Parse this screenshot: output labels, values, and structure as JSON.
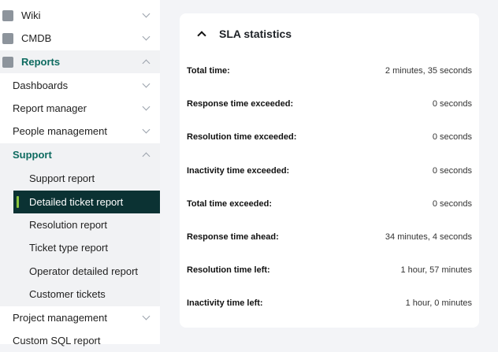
{
  "sidebar": {
    "wiki": "Wiki",
    "cmdb": "CMDB",
    "reports": "Reports",
    "dashboards": "Dashboards",
    "report_manager": "Report manager",
    "people_management": "People management",
    "support": "Support",
    "support_items": [
      "Support report",
      "Detailed ticket report",
      "Resolution report",
      "Ticket type report",
      "Operator detailed report",
      "Customer tickets"
    ],
    "project_management": "Project management",
    "custom_sql": "Custom SQL report",
    "accent": "#0e6b60",
    "selected_bg": "#0b3233"
  },
  "sla": {
    "title": "SLA statistics",
    "rows": [
      {
        "label": "Total time:",
        "value": "2 minutes, 35 seconds"
      },
      {
        "label": "Response time exceeded:",
        "value": "0 seconds"
      },
      {
        "label": "Resolution time exceeded:",
        "value": "0 seconds"
      },
      {
        "label": "Inactivity time exceeded:",
        "value": "0 seconds"
      },
      {
        "label": "Total time exceeded:",
        "value": "0 seconds"
      },
      {
        "label": "Response time ahead:",
        "value": "34 minutes, 4 seconds"
      },
      {
        "label": "Resolution time left:",
        "value": "1 hour, 57 minutes"
      },
      {
        "label": "Inactivity time left:",
        "value": "1 hour, 0 minutes"
      }
    ]
  }
}
